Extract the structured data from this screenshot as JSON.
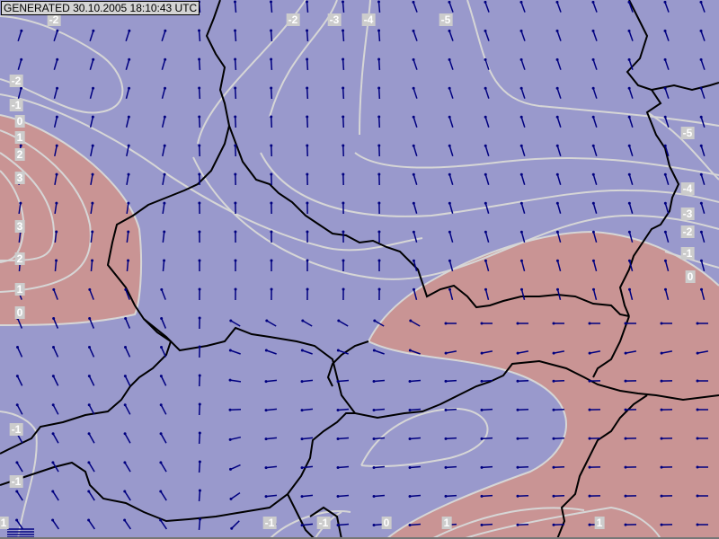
{
  "header": {
    "generated_stamp": "GENERATED 30.10.2005 18:10:43 UTC"
  },
  "colors": {
    "negative_field": "#9999cc",
    "positive_field": "#c99494",
    "contours": "#d6d6d6",
    "borders": "#000000",
    "wind_arrows": "#000080"
  },
  "contour_labels": [
    "-2",
    "-2",
    "-1",
    "0",
    "1",
    "2",
    "3",
    "3",
    "2",
    "1",
    "0",
    "-2",
    "-3",
    "-4",
    "-5",
    "-5",
    "-4",
    "-3",
    "-2",
    "-1",
    "0",
    "-1",
    "-1",
    "1",
    "-1",
    "-1",
    "0",
    "1",
    "1"
  ],
  "icons": {
    "legend": "scale-bars-icon",
    "arrows": "wind-arrow-icon"
  }
}
